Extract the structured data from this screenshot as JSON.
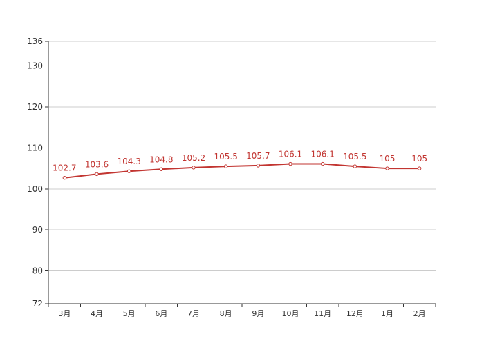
{
  "chart_data": {
    "type": "line",
    "title": "",
    "xlabel": "",
    "ylabel": "",
    "categories": [
      "3月",
      "4月",
      "5月",
      "6月",
      "7月",
      "8月",
      "9月",
      "10月",
      "11月",
      "12月",
      "1月",
      "2月"
    ],
    "series": [
      {
        "values": [
          102.7,
          103.6,
          104.3,
          104.8,
          105.2,
          105.5,
          105.7,
          106.1,
          106.1,
          105.5,
          105,
          105
        ],
        "color": "#c23531"
      }
    ],
    "ylim": [
      72,
      136
    ],
    "yticks": [
      72,
      80,
      90,
      100,
      110,
      120,
      130,
      136
    ],
    "grid": true,
    "legend": "none",
    "show_data_labels": true
  }
}
